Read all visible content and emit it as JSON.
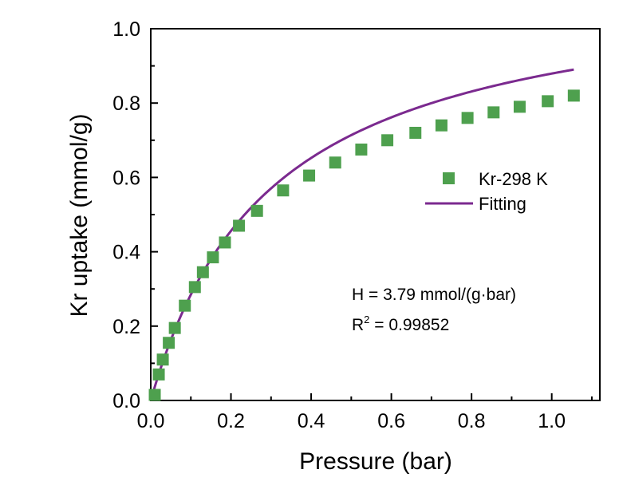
{
  "chart_data": {
    "type": "scatter",
    "xlabel": "Pressure (bar)",
    "ylabel": "Kr uptake (mmol/g)",
    "xlim": [
      0,
      1.12
    ],
    "ylim": [
      0,
      1.0
    ],
    "x_ticks": [
      0.0,
      0.2,
      0.4,
      0.6,
      0.8,
      1.0
    ],
    "x_tick_labels": [
      "0.0",
      "0.2",
      "0.4",
      "0.6",
      "0.8",
      "1.0"
    ],
    "y_ticks": [
      0.0,
      0.2,
      0.4,
      0.6,
      0.8,
      1.0
    ],
    "y_tick_labels": [
      "0.0",
      "0.2",
      "0.4",
      "0.6",
      "0.8",
      "1.0"
    ],
    "grid": false,
    "legend_position": "right",
    "series": [
      {
        "name": "Kr-298 K",
        "kind": "scatter",
        "marker": "square",
        "color": "#4ea04e",
        "x": [
          0.01,
          0.02,
          0.03,
          0.045,
          0.06,
          0.085,
          0.11,
          0.13,
          0.155,
          0.185,
          0.22,
          0.265,
          0.33,
          0.395,
          0.46,
          0.525,
          0.59,
          0.66,
          0.725,
          0.79,
          0.855,
          0.92,
          0.99,
          1.055
        ],
        "y": [
          0.015,
          0.07,
          0.11,
          0.155,
          0.195,
          0.255,
          0.305,
          0.345,
          0.385,
          0.425,
          0.47,
          0.51,
          0.565,
          0.605,
          0.64,
          0.675,
          0.7,
          0.72,
          0.74,
          0.76,
          0.775,
          0.79,
          0.805,
          0.82
        ]
      },
      {
        "name": "Fitting",
        "kind": "line",
        "color": "#7b2a8f",
        "model": "langmuir",
        "qmax": 1.145,
        "b": 3.31,
        "x_range": [
          0,
          1.055
        ]
      }
    ],
    "annotations": [
      "H = 3.79 mmol/(g·bar)",
      "R",
      "2",
      " = 0.99852"
    ]
  }
}
